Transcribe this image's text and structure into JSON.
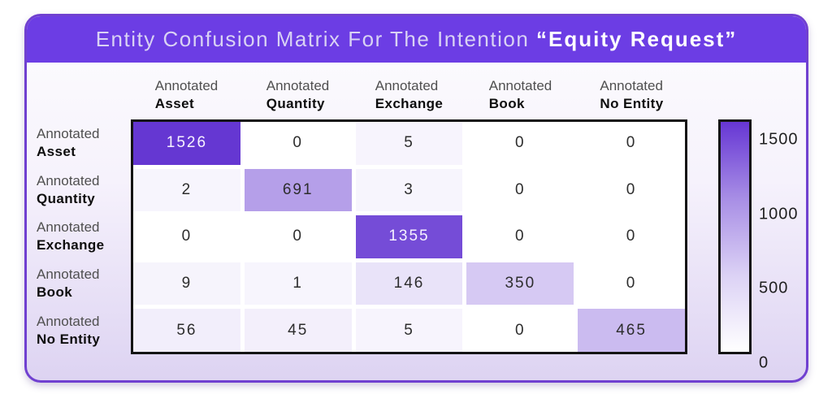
{
  "card": {
    "title_regular": "Entity Confusion Matrix For The Intention ",
    "title_bold": "“Equity Request”"
  },
  "labels": {
    "axis_prefix": "Annotated"
  },
  "colors": {
    "header_purple": "#6c3de4",
    "card_border": "#7040d0",
    "heat_max": "#6537d2",
    "heat_min": "#ffffff",
    "table_border": "#141414",
    "cell_text_dark": "#2d2d2d",
    "cell_text_light": "#f6f2ff"
  },
  "chart_data": {
    "type": "heatmap",
    "title": "Entity Confusion Matrix For The Intention “Equity Request”",
    "row_label_prefix": "Annotated",
    "col_label_prefix": "Annotated",
    "categories": [
      "Asset",
      "Quantity",
      "Exchange",
      "Book",
      "No Entity"
    ],
    "matrix": [
      [
        1526,
        0,
        5,
        0,
        0
      ],
      [
        2,
        691,
        3,
        0,
        0
      ],
      [
        0,
        0,
        1355,
        0,
        0
      ],
      [
        9,
        1,
        146,
        350,
        0
      ],
      [
        56,
        45,
        5,
        0,
        465
      ]
    ],
    "value_max_for_scale": 1526,
    "colorbar": {
      "min": 0,
      "max": 1500,
      "ticks": [
        1500,
        1000,
        500,
        0
      ],
      "position": "right"
    },
    "legend": "none",
    "grid": "off"
  }
}
